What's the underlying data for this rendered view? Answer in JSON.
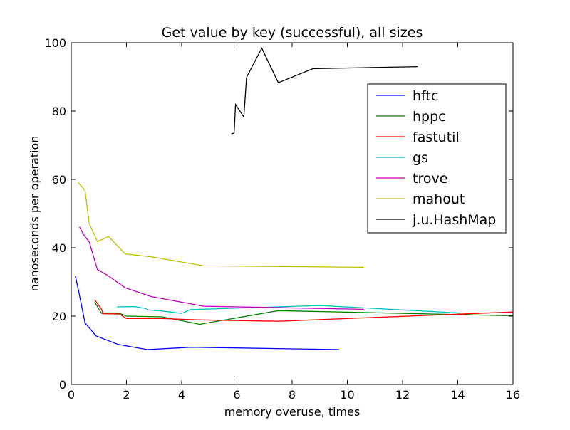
{
  "chart_data": {
    "type": "line",
    "title": "Get value by key (successful), all sizes",
    "xlabel": "memory overuse, times",
    "ylabel": "nanoseconds per operation",
    "xlim": [
      0,
      16
    ],
    "ylim": [
      0,
      100
    ],
    "xticks": [
      0,
      2,
      4,
      6,
      8,
      10,
      12,
      14,
      16
    ],
    "yticks": [
      0,
      20,
      40,
      60,
      80,
      100
    ],
    "legend_position": "upper-right",
    "series": [
      {
        "name": "hftc",
        "color": "#0000ff",
        "x": [
          0.15,
          0.25,
          0.5,
          0.9,
          1.7,
          2.75,
          4.35,
          9.7
        ],
        "y": [
          31.7,
          28,
          18,
          14.2,
          11.7,
          10.2,
          10.9,
          10.2
        ]
      },
      {
        "name": "hppc",
        "color": "#008000",
        "x": [
          0.85,
          1.1,
          1.3,
          1.55,
          1.75,
          2.0,
          3.3,
          4.65,
          7.5,
          16.0
        ],
        "y": [
          24.1,
          20.8,
          20.9,
          20.9,
          20.8,
          20.0,
          19.8,
          17.6,
          21.6,
          20.1
        ]
      },
      {
        "name": "fastutil",
        "color": "#ff0000",
        "x": [
          0.85,
          1.1,
          1.15,
          1.75,
          2.0,
          3.3,
          4.65,
          7.5,
          16.0
        ],
        "y": [
          24.8,
          22.0,
          20.7,
          20.6,
          19.3,
          19.3,
          18.9,
          18.5,
          21.2
        ]
      },
      {
        "name": "gs",
        "color": "#00bfbf",
        "x": [
          1.65,
          2.3,
          2.7,
          2.8,
          3.3,
          4.0,
          4.3,
          9.0,
          14.1
        ],
        "y": [
          22.7,
          22.8,
          22.2,
          21.8,
          21.5,
          20.8,
          21.9,
          23.1,
          20.9
        ]
      },
      {
        "name": "trove",
        "color": "#bf00bf",
        "x": [
          0.3,
          0.45,
          0.65,
          0.95,
          1.3,
          1.95,
          2.9,
          4.8,
          10.6
        ],
        "y": [
          46.1,
          43.8,
          41.7,
          33.6,
          32.0,
          28.3,
          25.7,
          22.9,
          22.0
        ]
      },
      {
        "name": "mahout",
        "color": "#bfbf00",
        "x": [
          0.25,
          0.5,
          0.65,
          0.95,
          1.35,
          1.95,
          2.95,
          4.8,
          10.6
        ],
        "y": [
          59.1,
          56.7,
          47.1,
          41.8,
          43.3,
          38.2,
          37.3,
          34.7,
          34.3
        ]
      },
      {
        "name": "j.u.HashMap",
        "color": "#000000",
        "x": [
          5.8,
          5.9,
          5.95,
          6.25,
          6.35,
          6.9,
          7.5,
          8.75,
          12.55
        ],
        "y": [
          73.3,
          73.6,
          81.9,
          78.3,
          89.9,
          98.4,
          88.3,
          92.4,
          93.0
        ]
      }
    ]
  }
}
